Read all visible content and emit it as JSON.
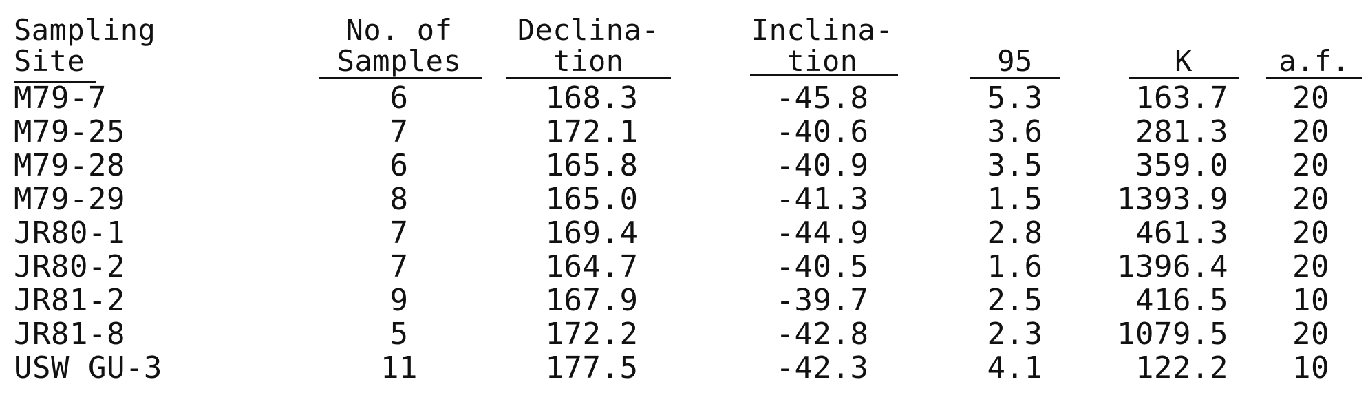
{
  "table": {
    "headers": {
      "site_line1": "Sampling",
      "site_line2": "Site",
      "samples_line1": "No. of",
      "samples_line2": "Samples",
      "decl_line1": "Declina-",
      "decl_line2": "tion",
      "incl_line1": "Inclina-",
      "incl_line2": "tion",
      "alpha95": "95",
      "k": "K",
      "af": "a.f."
    },
    "rows": [
      {
        "site": "M79-7",
        "samples": "6",
        "declination": "168.3",
        "inclination": "-45.8",
        "alpha95": "5.3",
        "k": "163.7",
        "af": "20"
      },
      {
        "site": "M79-25",
        "samples": "7",
        "declination": "172.1",
        "inclination": "-40.6",
        "alpha95": "3.6",
        "k": "281.3",
        "af": "20"
      },
      {
        "site": "M79-28",
        "samples": "6",
        "declination": "165.8",
        "inclination": "-40.9",
        "alpha95": "3.5",
        "k": "359.0",
        "af": "20"
      },
      {
        "site": "M79-29",
        "samples": "8",
        "declination": "165.0",
        "inclination": "-41.3",
        "alpha95": "1.5",
        "k": "1393.9",
        "af": "20"
      },
      {
        "site": "JR80-1",
        "samples": "7",
        "declination": "169.4",
        "inclination": "-44.9",
        "alpha95": "2.8",
        "k": "461.3",
        "af": "20"
      },
      {
        "site": "JR80-2",
        "samples": "7",
        "declination": "164.7",
        "inclination": "-40.5",
        "alpha95": "1.6",
        "k": "1396.4",
        "af": "20"
      },
      {
        "site": "JR81-2",
        "samples": "9",
        "declination": "167.9",
        "inclination": "-39.7",
        "alpha95": "2.5",
        "k": "416.5",
        "af": "10"
      },
      {
        "site": "JR81-8",
        "samples": "5",
        "declination": "172.2",
        "inclination": "-42.8",
        "alpha95": "2.3",
        "k": "1079.5",
        "af": "20"
      },
      {
        "site": "USW GU-3",
        "samples": "11",
        "declination": "177.5",
        "inclination": "-42.3",
        "alpha95": "4.1",
        "k": "122.2",
        "af": "10"
      }
    ]
  }
}
